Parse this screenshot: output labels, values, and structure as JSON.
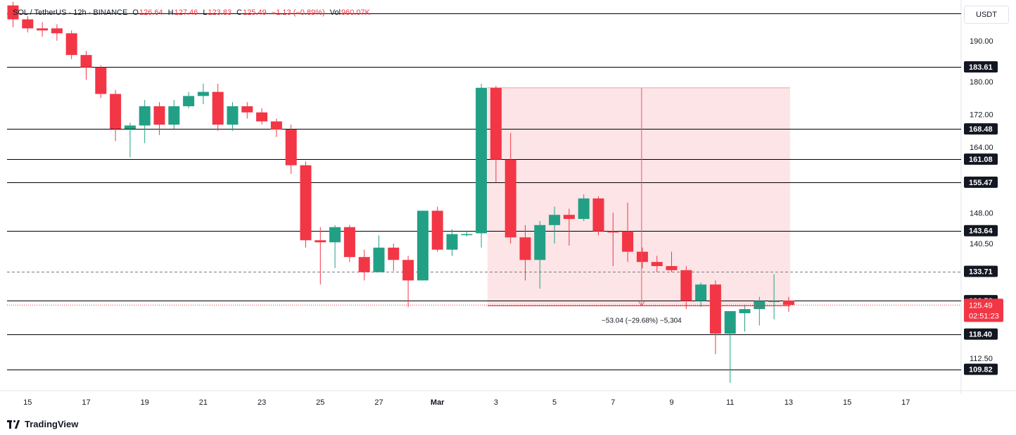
{
  "legend": {
    "symbol": "SOL / TetherUS",
    "interval": "12h",
    "exchange": "BINANCE",
    "open_label": "O",
    "open": "126.64",
    "high_label": "H",
    "high": "127.46",
    "low_label": "L",
    "low": "123.83",
    "close_label": "C",
    "close": "125.49",
    "change": "−1.13 (−0.89%)",
    "vol_label": "Vol",
    "vol": "960.07K"
  },
  "currency": "USDT",
  "brand": "TradingView",
  "colors": {
    "up": "#22a085",
    "down": "#f23645",
    "line": "#000000",
    "short_zone": "#fde1e3",
    "price_label": "#f23645"
  },
  "chart_data": {
    "type": "candlestick",
    "interval": "12h",
    "y_axis_ticks": [
      190.0,
      180.0,
      172.0,
      164.0,
      148.0,
      140.5,
      112.5
    ],
    "x_axis_ticks": [
      {
        "label": "15",
        "index": 1
      },
      {
        "label": "17",
        "index": 5
      },
      {
        "label": "19",
        "index": 9
      },
      {
        "label": "21",
        "index": 13
      },
      {
        "label": "23",
        "index": 17
      },
      {
        "label": "25",
        "index": 21
      },
      {
        "label": "27",
        "index": 25
      },
      {
        "label": "Mar",
        "index": 29
      },
      {
        "label": "3",
        "index": 33
      },
      {
        "label": "5",
        "index": 37
      },
      {
        "label": "7",
        "index": 41
      },
      {
        "label": "9",
        "index": 45
      },
      {
        "label": "11",
        "index": 49
      },
      {
        "label": "13",
        "index": 53
      },
      {
        "label": "15",
        "index": 57
      },
      {
        "label": "17",
        "index": 61
      }
    ],
    "candles": [
      {
        "o": 198.6,
        "h": 199.5,
        "l": 193.3,
        "c": 195.2
      },
      {
        "o": 195.2,
        "h": 196.0,
        "l": 192.0,
        "c": 193.0
      },
      {
        "o": 193.0,
        "h": 194.5,
        "l": 191.0,
        "c": 192.5
      },
      {
        "o": 193.0,
        "h": 194.0,
        "l": 190.0,
        "c": 191.8
      },
      {
        "o": 191.8,
        "h": 192.5,
        "l": 185.5,
        "c": 186.5
      },
      {
        "o": 186.5,
        "h": 187.5,
        "l": 180.5,
        "c": 183.5
      },
      {
        "o": 183.5,
        "h": 184.0,
        "l": 176.0,
        "c": 177.0
      },
      {
        "o": 177.0,
        "h": 178.0,
        "l": 165.5,
        "c": 168.5
      },
      {
        "o": 168.5,
        "h": 170.0,
        "l": 161.5,
        "c": 169.3
      },
      {
        "o": 169.3,
        "h": 175.5,
        "l": 165.0,
        "c": 174.0
      },
      {
        "o": 174.0,
        "h": 175.0,
        "l": 167.0,
        "c": 169.5
      },
      {
        "o": 169.5,
        "h": 175.5,
        "l": 168.5,
        "c": 174.0
      },
      {
        "o": 174.0,
        "h": 177.5,
        "l": 173.5,
        "c": 176.5
      },
      {
        "o": 176.5,
        "h": 179.5,
        "l": 174.5,
        "c": 177.5
      },
      {
        "o": 177.5,
        "h": 179.5,
        "l": 168.0,
        "c": 169.5
      },
      {
        "o": 169.5,
        "h": 175.0,
        "l": 168.0,
        "c": 174.0
      },
      {
        "o": 174.0,
        "h": 175.0,
        "l": 171.0,
        "c": 172.5
      },
      {
        "o": 172.5,
        "h": 173.5,
        "l": 169.5,
        "c": 170.3
      },
      {
        "o": 170.3,
        "h": 171.0,
        "l": 166.5,
        "c": 168.3
      },
      {
        "o": 168.3,
        "h": 169.5,
        "l": 157.5,
        "c": 159.6
      },
      {
        "o": 159.6,
        "h": 160.5,
        "l": 139.5,
        "c": 141.3
      },
      {
        "o": 141.3,
        "h": 144.5,
        "l": 130.5,
        "c": 140.8
      },
      {
        "o": 140.8,
        "h": 145.0,
        "l": 134.5,
        "c": 144.5
      },
      {
        "o": 144.5,
        "h": 145.0,
        "l": 136.0,
        "c": 137.2
      },
      {
        "o": 137.2,
        "h": 139.0,
        "l": 131.5,
        "c": 133.5
      },
      {
        "o": 133.5,
        "h": 142.5,
        "l": 133.5,
        "c": 139.5
      },
      {
        "o": 139.5,
        "h": 140.5,
        "l": 133.8,
        "c": 136.5
      },
      {
        "o": 136.5,
        "h": 137.5,
        "l": 125.0,
        "c": 131.5
      },
      {
        "o": 131.5,
        "h": 148.5,
        "l": 131.5,
        "c": 148.5
      },
      {
        "o": 148.5,
        "h": 149.5,
        "l": 138.5,
        "c": 139.0
      },
      {
        "o": 139.0,
        "h": 144.0,
        "l": 137.5,
        "c": 142.8
      },
      {
        "o": 142.8,
        "h": 143.5,
        "l": 142.2,
        "c": 142.8
      },
      {
        "o": 143.0,
        "h": 179.5,
        "l": 139.5,
        "c": 178.5
      },
      {
        "o": 178.5,
        "h": 179.0,
        "l": 155.5,
        "c": 161.0
      },
      {
        "o": 161.0,
        "h": 167.5,
        "l": 140.5,
        "c": 142.0
      },
      {
        "o": 142.0,
        "h": 145.0,
        "l": 131.5,
        "c": 136.5
      },
      {
        "o": 136.5,
        "h": 146.0,
        "l": 129.5,
        "c": 145.0
      },
      {
        "o": 145.0,
        "h": 149.5,
        "l": 140.5,
        "c": 147.5
      },
      {
        "o": 147.5,
        "h": 149.0,
        "l": 140.0,
        "c": 146.5
      },
      {
        "o": 146.5,
        "h": 152.5,
        "l": 146.0,
        "c": 151.5
      },
      {
        "o": 151.5,
        "h": 152.0,
        "l": 142.5,
        "c": 143.5
      },
      {
        "o": 143.5,
        "h": 148.0,
        "l": 135.0,
        "c": 143.2
      },
      {
        "o": 143.5,
        "h": 150.5,
        "l": 136.0,
        "c": 138.5
      },
      {
        "o": 138.5,
        "h": 139.5,
        "l": 134.5,
        "c": 136.0
      },
      {
        "o": 136.0,
        "h": 137.5,
        "l": 133.5,
        "c": 135.0
      },
      {
        "o": 135.0,
        "h": 138.5,
        "l": 133.5,
        "c": 134.0
      },
      {
        "o": 134.0,
        "h": 135.0,
        "l": 124.5,
        "c": 126.5
      },
      {
        "o": 126.5,
        "h": 131.0,
        "l": 125.0,
        "c": 130.5
      },
      {
        "o": 130.5,
        "h": 131.5,
        "l": 113.5,
        "c": 118.5
      },
      {
        "o": 118.5,
        "h": 124.0,
        "l": 106.5,
        "c": 124.0
      },
      {
        "o": 123.5,
        "h": 125.5,
        "l": 119.0,
        "c": 124.5
      },
      {
        "o": 124.5,
        "h": 127.5,
        "l": 120.5,
        "c": 126.5
      },
      {
        "o": 126.5,
        "h": 133.0,
        "l": 122.0,
        "c": 126.5
      },
      {
        "o": 126.6,
        "h": 127.5,
        "l": 123.8,
        "c": 125.5
      }
    ],
    "horizontal_levels": [
      {
        "value": "183.61",
        "style": "solid"
      },
      {
        "value": "168.48",
        "style": "solid"
      },
      {
        "value": "161.08",
        "style": "solid"
      },
      {
        "value": "155.47",
        "style": "solid"
      },
      {
        "value": "143.64",
        "style": "solid"
      },
      {
        "value": "133.71",
        "style": "dashed"
      },
      {
        "value": "126.56",
        "style": "solid"
      },
      {
        "value": "118.40",
        "style": "solid"
      },
      {
        "value": "109.82",
        "style": "solid"
      }
    ],
    "current_price": {
      "value": "125.49",
      "countdown": "02:51:23"
    },
    "short_position": {
      "entry": 125.3,
      "top": 178.5,
      "start_index": 33,
      "end_index": 53
    },
    "measure": {
      "from": 178.5,
      "to": 125.3,
      "index": 43,
      "label": "−53.04 (−29.68%) −5,304"
    }
  }
}
